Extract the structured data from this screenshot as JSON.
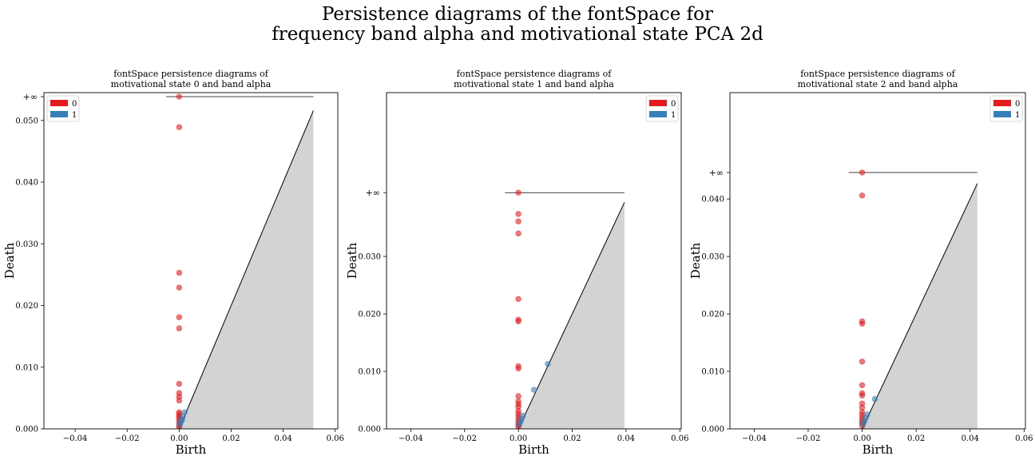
{
  "suptitle": {
    "line1": "Persistence diagrams of the fontSpace for",
    "line2": "frequency band alpha and motivational state PCA 2d"
  },
  "colors": {
    "h0": "#e41a1c",
    "h1": "#377eb8",
    "diagonal_fill": "#d3d3d3",
    "axes": "#000000"
  },
  "chart_data": [
    {
      "type": "scatter",
      "title": [
        "fontSpace persistence diagrams of",
        "motivational state 0 and band alpha"
      ],
      "xlabel": "Birth",
      "ylabel": "Death",
      "xlim": [
        -0.052,
        0.061
      ],
      "ylim": [
        0,
        0.0545
      ],
      "xticks": [
        -0.04,
        -0.02,
        0.0,
        0.02,
        0.04,
        0.06
      ],
      "xtick_labels": [
        "−0.04",
        "−0.02",
        "0.00",
        "0.02",
        "0.04",
        "0.06"
      ],
      "yticks": [
        0.0,
        0.01,
        0.02,
        0.03,
        0.04,
        0.05
      ],
      "ytick_labels": [
        "0.000",
        "0.010",
        "0.020",
        "0.030",
        "0.040",
        "0.050"
      ],
      "infinity_label": "+∞",
      "infinity_value": 0.05385,
      "diagonal_max": 0.0516,
      "legend": {
        "position": "upper left",
        "entries": [
          "0",
          "1"
        ]
      },
      "series": [
        {
          "name": "0",
          "color": "#e41a1c",
          "points": [
            [
              0,
              0.05385
            ],
            [
              0,
              0.0489
            ],
            [
              0,
              0.0253
            ],
            [
              0,
              0.0229
            ],
            [
              0,
              0.0181
            ],
            [
              0,
              0.0163
            ],
            [
              0,
              0.0073
            ],
            [
              0,
              0.0058
            ],
            [
              0,
              0.0052
            ],
            [
              0,
              0.0046
            ],
            [
              0,
              0.0027
            ],
            [
              0,
              0.0024
            ],
            [
              0,
              0.0021
            ],
            [
              0,
              0.0018
            ],
            [
              0,
              0.0014
            ],
            [
              0,
              0.001
            ],
            [
              0,
              0.0006
            ],
            [
              0,
              0.0003
            ]
          ]
        },
        {
          "name": "1",
          "color": "#377eb8",
          "points": [
            [
              0.0021,
              0.0027
            ],
            [
              0.0014,
              0.002
            ],
            [
              0.0009,
              0.0014
            ],
            [
              0.0006,
              0.001
            ],
            [
              0.0003,
              0.0007
            ],
            [
              0.0012,
              0.0015
            ]
          ]
        }
      ]
    },
    {
      "type": "scatter",
      "title": [
        "fontSpace persistence diagrams of",
        "motivational state 1 and band alpha"
      ],
      "xlabel": "Birth",
      "ylabel": "Death",
      "xlim": [
        -0.049,
        0.0605
      ],
      "ylim": [
        0,
        0.0585
      ],
      "xticks": [
        -0.04,
        -0.02,
        0.0,
        0.02,
        0.04,
        0.06
      ],
      "xtick_labels": [
        "−0.04",
        "−0.02",
        "0.00",
        "0.02",
        "0.04",
        "0.06"
      ],
      "yticks": [
        0.0,
        0.01,
        0.02,
        0.03
      ],
      "ytick_labels": [
        "0.000",
        "0.010",
        "0.020",
        "0.030"
      ],
      "infinity_label": "+∞",
      "infinity_value": 0.0411,
      "diagonal_max": 0.0394,
      "legend": {
        "position": "upper right",
        "entries": [
          "0",
          "1"
        ]
      },
      "series": [
        {
          "name": "0",
          "color": "#e41a1c",
          "points": [
            [
              0,
              0.0411
            ],
            [
              0,
              0.0374
            ],
            [
              0,
              0.0361
            ],
            [
              0,
              0.034
            ],
            [
              0,
              0.0226
            ],
            [
              0,
              0.019
            ],
            [
              0,
              0.0187
            ],
            [
              0,
              0.0109
            ],
            [
              0,
              0.0105
            ],
            [
              0,
              0.0057
            ],
            [
              0,
              0.0048
            ],
            [
              0,
              0.0043
            ],
            [
              0,
              0.0038
            ],
            [
              0,
              0.0031
            ],
            [
              0,
              0.0026
            ],
            [
              0,
              0.0021
            ],
            [
              0,
              0.0016
            ],
            [
              0,
              0.0011
            ],
            [
              0,
              0.0007
            ],
            [
              0,
              0.0003
            ]
          ]
        },
        {
          "name": "1",
          "color": "#377eb8",
          "points": [
            [
              0.0109,
              0.0113
            ],
            [
              0.0058,
              0.0068
            ],
            [
              0.0017,
              0.0023
            ],
            [
              0.0012,
              0.0017
            ],
            [
              0.0008,
              0.0013
            ],
            [
              0.0004,
              0.0008
            ]
          ]
        }
      ]
    },
    {
      "type": "scatter",
      "title": [
        "fontSpace persistence diagrams of",
        "motivational state 2 and band alpha"
      ],
      "xlabel": "Birth",
      "ylabel": "Death",
      "xlim": [
        -0.049,
        0.0605
      ],
      "ylim": [
        0,
        0.0585
      ],
      "xticks": [
        -0.04,
        -0.02,
        0.0,
        0.02,
        0.04,
        0.06
      ],
      "xtick_labels": [
        "−0.04",
        "−0.02",
        "0.00",
        "0.02",
        "0.04",
        "0.06"
      ],
      "yticks": [
        0.0,
        0.01,
        0.02,
        0.03,
        0.04
      ],
      "ytick_labels": [
        "0.000",
        "0.010",
        "0.020",
        "0.030",
        "0.040"
      ],
      "infinity_label": "+∞",
      "infinity_value": 0.0446,
      "diagonal_max": 0.0427,
      "legend": {
        "position": "upper right",
        "entries": [
          "0",
          "1"
        ]
      },
      "series": [
        {
          "name": "0",
          "color": "#e41a1c",
          "points": [
            [
              0,
              0.0446
            ],
            [
              0,
              0.0406
            ],
            [
              0,
              0.0187
            ],
            [
              0,
              0.0183
            ],
            [
              0,
              0.0117
            ],
            [
              0,
              0.0076
            ],
            [
              0,
              0.0062
            ],
            [
              0,
              0.0058
            ],
            [
              0,
              0.0044
            ],
            [
              0,
              0.0037
            ],
            [
              0,
              0.0029
            ],
            [
              0,
              0.0024
            ],
            [
              0,
              0.0019
            ],
            [
              0,
              0.0014
            ],
            [
              0,
              0.001
            ],
            [
              0,
              0.0005
            ]
          ]
        },
        {
          "name": "1",
          "color": "#377eb8",
          "points": [
            [
              0.0047,
              0.0052
            ],
            [
              0.0019,
              0.0025
            ],
            [
              0.0013,
              0.0019
            ],
            [
              0.0008,
              0.0013
            ],
            [
              0.0004,
              0.0008
            ]
          ]
        }
      ]
    }
  ]
}
